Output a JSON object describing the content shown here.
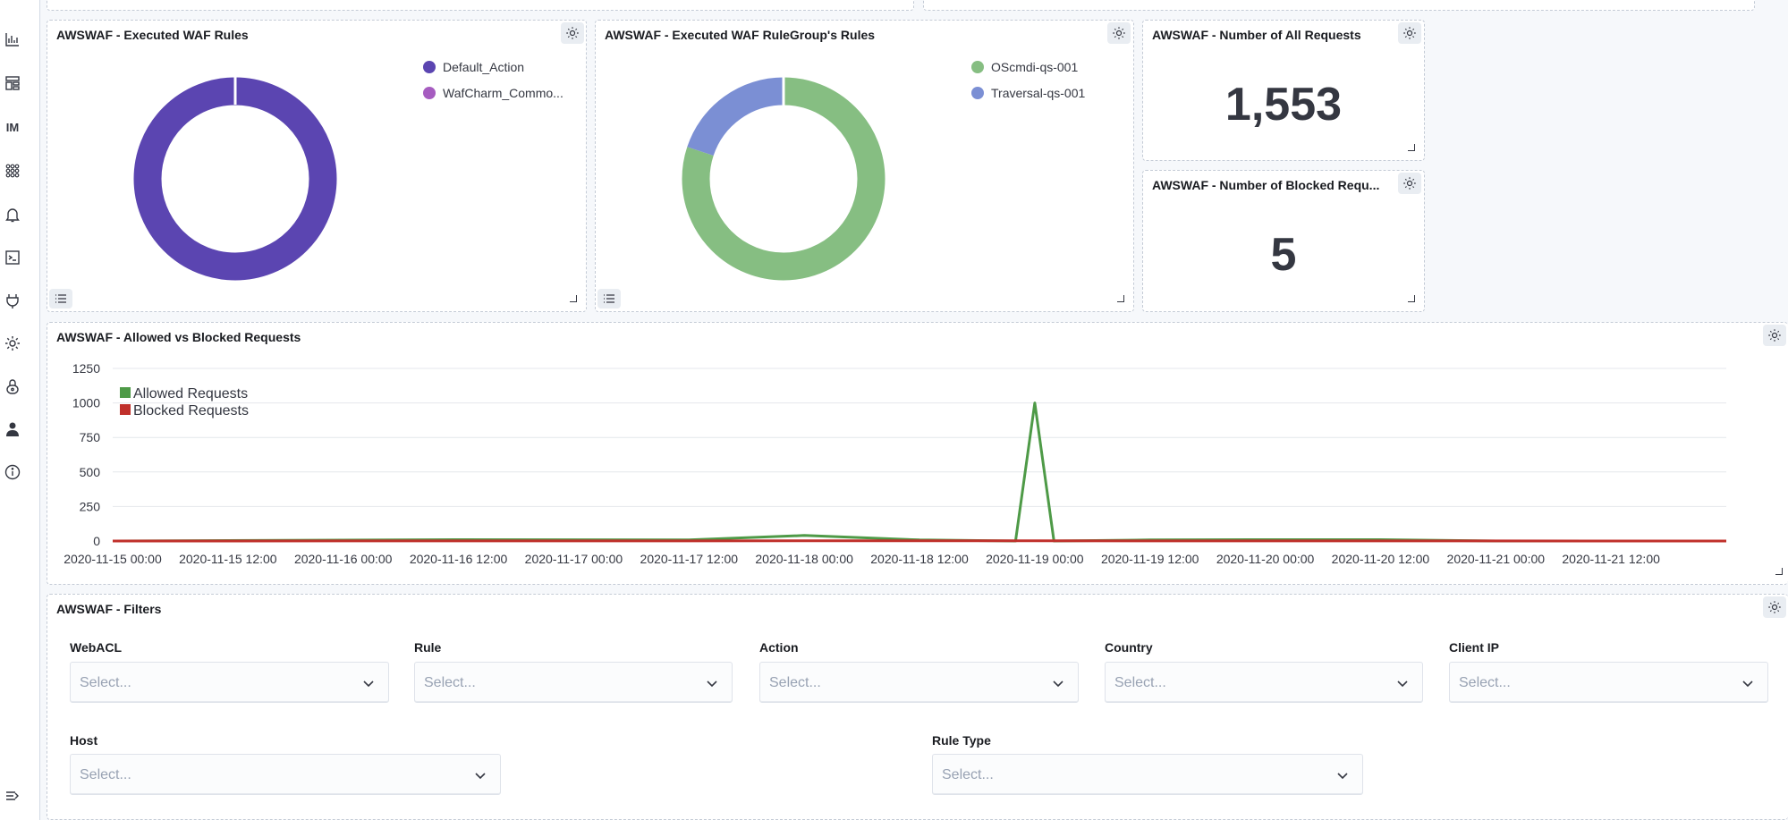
{
  "sidebar": {
    "items": [
      {
        "icon": "visualize-icon"
      },
      {
        "icon": "dashboard-icon"
      },
      {
        "icon": "im-icon",
        "label": "IM"
      },
      {
        "icon": "apps-grid-icon"
      },
      {
        "icon": "alerting-icon"
      },
      {
        "icon": "console-icon"
      },
      {
        "icon": "plugins-icon"
      },
      {
        "icon": "gear-icon"
      },
      {
        "icon": "security-icon"
      },
      {
        "icon": "user-icon"
      },
      {
        "icon": "info-icon"
      },
      {
        "icon": "collapse-menu-icon"
      }
    ]
  },
  "panels": {
    "executed_rules": {
      "title": "AWSWAF - Executed WAF Rules",
      "legend": [
        {
          "label": "Default_Action",
          "color": "#5b45b1",
          "value": 99.9
        },
        {
          "label": "WafCharm_Commo...",
          "color": "#a65cc0",
          "value": 0.1
        }
      ]
    },
    "rulegroup_rules": {
      "title": "AWSWAF - Executed WAF RuleGroup's Rules",
      "legend": [
        {
          "label": "OScmdi-qs-001",
          "color": "#86be82",
          "value": 80
        },
        {
          "label": "Traversal-qs-001",
          "color": "#7b8fd4",
          "value": 20
        }
      ]
    },
    "all_requests": {
      "title": "AWSWAF - Number of All Requests",
      "value": "1,553"
    },
    "blocked_requests": {
      "title": "AWSWAF - Number of Blocked Requ...",
      "value": "5"
    },
    "timeline": {
      "title": "AWSWAF - Allowed vs Blocked Requests"
    },
    "filters": {
      "title": "AWSWAF - Filters",
      "fields": [
        {
          "label": "WebACL",
          "placeholder": "Select..."
        },
        {
          "label": "Rule",
          "placeholder": "Select..."
        },
        {
          "label": "Action",
          "placeholder": "Select..."
        },
        {
          "label": "Country",
          "placeholder": "Select..."
        },
        {
          "label": "Client IP",
          "placeholder": "Select..."
        },
        {
          "label": "Host",
          "placeholder": "Select..."
        },
        {
          "label": "Rule Type",
          "placeholder": "Select..."
        }
      ]
    }
  },
  "chart_data": {
    "type": "line",
    "title": "AWSWAF - Allowed vs Blocked Requests",
    "xlabel": "",
    "ylabel": "",
    "ylim": [
      0,
      1250
    ],
    "yticks": [
      "1250",
      "1000",
      "750",
      "500",
      "250",
      "0"
    ],
    "xtick_labels": [
      "2020-11-15 00:00",
      "2020-11-15 12:00",
      "2020-11-16 00:00",
      "2020-11-16 12:00",
      "2020-11-17 00:00",
      "2020-11-17 12:00",
      "2020-11-18 00:00",
      "2020-11-18 12:00",
      "2020-11-19 00:00",
      "2020-11-19 12:00",
      "2020-11-20 00:00",
      "2020-11-20 12:00",
      "2020-11-21 00:00",
      "2020-11-21 12:00"
    ],
    "grid": true,
    "legend_position": "top-left",
    "series": [
      {
        "name": "Allowed Requests",
        "color": "#4e9a47",
        "points": [
          [
            "2020-11-15 00:00",
            0
          ],
          [
            "2020-11-16 12:00",
            10
          ],
          [
            "2020-11-17 12:00",
            8
          ],
          [
            "2020-11-18 00:00",
            40
          ],
          [
            "2020-11-18 12:00",
            8
          ],
          [
            "2020-11-18 22:00",
            0
          ],
          [
            "2020-11-19 00:00",
            1000
          ],
          [
            "2020-11-19 02:00",
            0
          ],
          [
            "2020-11-19 12:00",
            8
          ],
          [
            "2020-11-20 00:00",
            10
          ],
          [
            "2020-11-20 12:00",
            10
          ],
          [
            "2020-11-21 00:00",
            0
          ],
          [
            "2020-11-21 12:00",
            0
          ],
          [
            "2020-11-22 00:00",
            0
          ]
        ]
      },
      {
        "name": "Blocked Requests",
        "color": "#c0302b",
        "points": [
          [
            "2020-11-15 00:00",
            0
          ],
          [
            "2020-11-18 00:00",
            1
          ],
          [
            "2020-11-19 00:00",
            1
          ],
          [
            "2020-11-22 00:00",
            0
          ]
        ]
      }
    ]
  }
}
